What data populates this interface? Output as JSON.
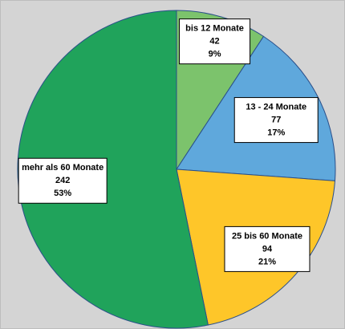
{
  "chart_data": {
    "type": "pie",
    "categories": [
      "bis 12 Monate",
      "13 - 24 Monate",
      "25 bis 60 Monate",
      "mehr als 60 Monate"
    ],
    "values": [
      42,
      77,
      94,
      242
    ],
    "percent_labels": [
      "9%",
      "17%",
      "21%",
      "53%"
    ],
    "colors": [
      "#7cc36c",
      "#5fa8dc",
      "#fec629",
      "#20a35b"
    ]
  }
}
